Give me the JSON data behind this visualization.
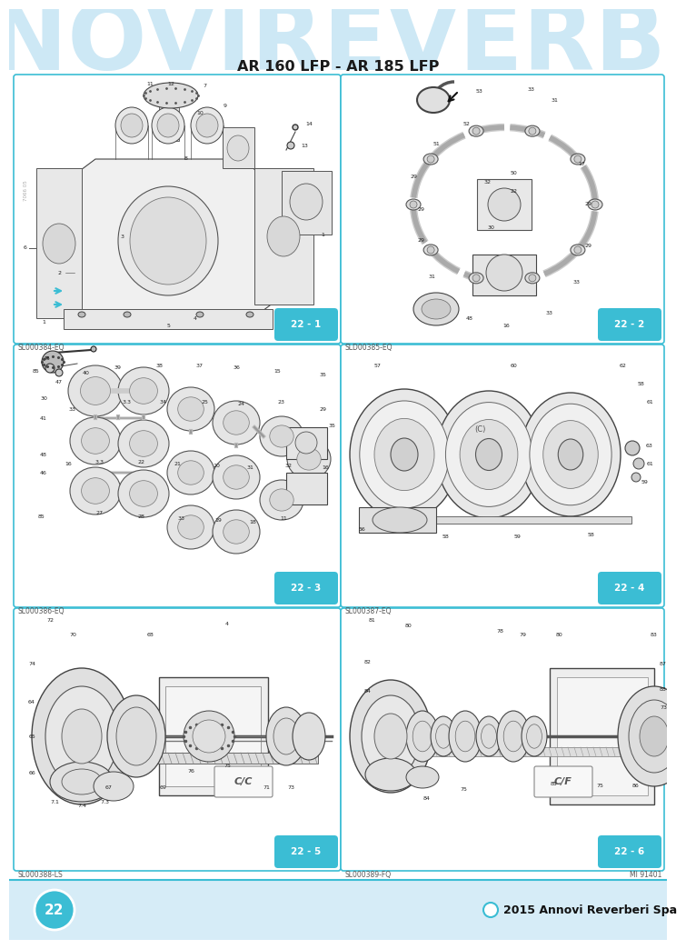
{
  "title_bg": "ANNOVIREVERBERÌ",
  "title_bg_color": "#cde8f5",
  "subtitle": "AR 160 LFP - AR 185 LFP",
  "subtitle_color": "#1a1a1a",
  "bg_color": "#ffffff",
  "diagram_border_color": "#3bbdd4",
  "diagram_bg": "#ffffff",
  "panel_labels": [
    "22 - 1",
    "22 - 2",
    "22 - 3",
    "22 - 4",
    "22 - 5",
    "22 - 6"
  ],
  "panel_label_bg": "#3bbdd4",
  "panel_label_color": "#ffffff",
  "panel_codes": [
    "SL000384-EQ",
    "SLD00385-EQ",
    "SL000386-EQ",
    "SL000387-EQ",
    "SL000388-LS",
    "SL000389-FQ"
  ],
  "panel_code_right": "MI 91401",
  "footer_text": "2015 Annovi Reverberi Spa",
  "footer_page": "22",
  "footer_bg": "#d6ecf7",
  "footer_line_color": "#3bbdd4",
  "footer_circle_fill": "#3bbdd4",
  "line_color": "#555555",
  "part_num_color": "#222222",
  "sketch_face": "#f5f5f5",
  "sketch_dark": "#e0e0e0"
}
